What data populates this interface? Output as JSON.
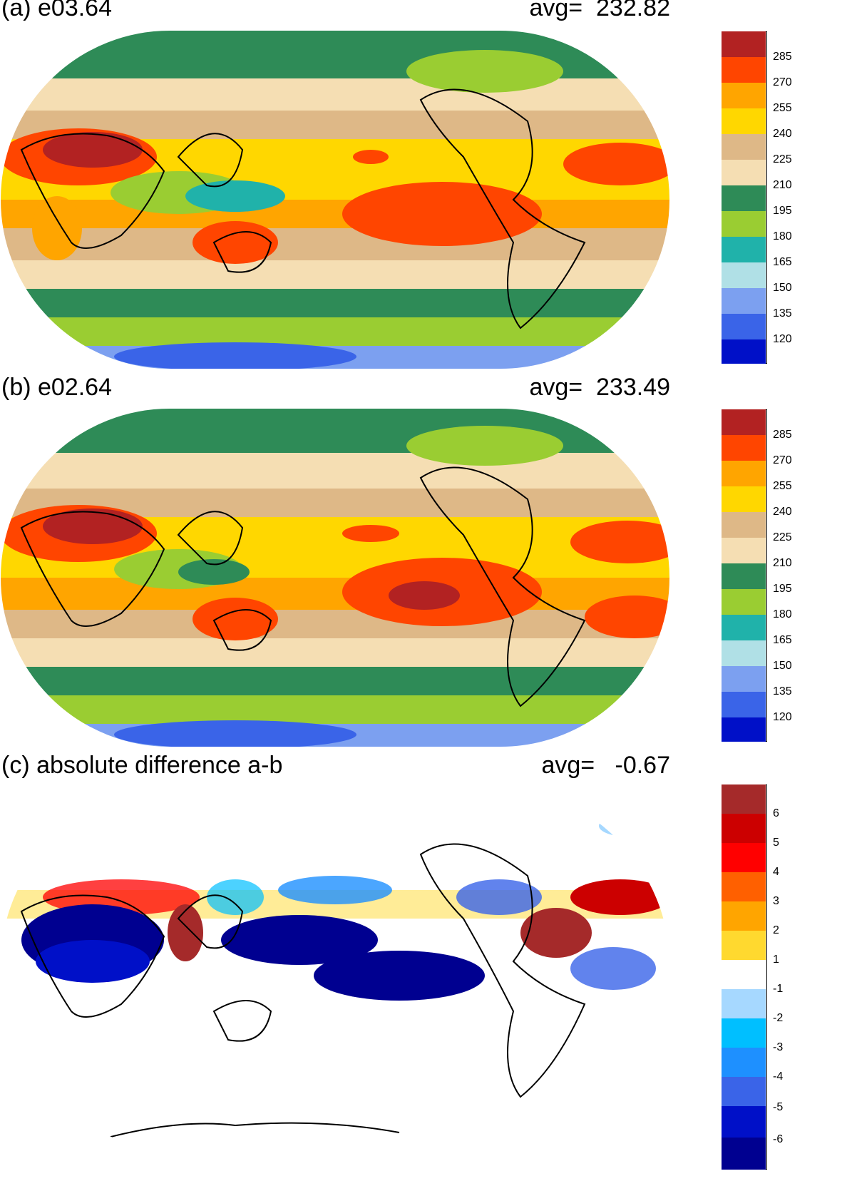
{
  "panels": [
    {
      "id": "a",
      "title": "(a) e03.64",
      "avg_label": "avg=  232.82",
      "legend": {
        "colors": [
          "#0010c8",
          "#3a64e8",
          "#7ca0f0",
          "#b0e0e6",
          "#20b2aa",
          "#9acd32",
          "#2e8b57",
          "#f5deb3",
          "#deb887",
          "#ffd700",
          "#ffa500",
          "#ff4500",
          "#b22222"
        ],
        "labels": [
          "120",
          "135",
          "150",
          "165",
          "180",
          "195",
          "210",
          "225",
          "240",
          "255",
          "270",
          "285"
        ]
      }
    },
    {
      "id": "b",
      "title": "(b) e02.64",
      "avg_label": "avg=  233.49",
      "legend": {
        "colors": [
          "#0010c8",
          "#3a64e8",
          "#7ca0f0",
          "#b0e0e6",
          "#20b2aa",
          "#9acd32",
          "#2e8b57",
          "#f5deb3",
          "#deb887",
          "#ffd700",
          "#ffa500",
          "#ff4500",
          "#b22222"
        ],
        "labels": [
          "120",
          "135",
          "150",
          "165",
          "180",
          "195",
          "210",
          "225",
          "240",
          "255",
          "270",
          "285"
        ]
      }
    },
    {
      "id": "c",
      "title": "(c) absolute difference a-b",
      "avg_label": "avg=   -0.67",
      "legend": {
        "colors": [
          "#000090",
          "#0010c8",
          "#3a64e8",
          "#1e90ff",
          "#00bfff",
          "#a6d8ff",
          "#ffffff",
          "#ffd92f",
          "#ffa500",
          "#ff6000",
          "#ff0000",
          "#cc0000",
          "#a52a2a"
        ],
        "labels": [
          "-6",
          "-5",
          "-4",
          "-3",
          "-2",
          "-1",
          "1",
          "2",
          "3",
          "4",
          "5",
          "6"
        ]
      }
    }
  ]
}
